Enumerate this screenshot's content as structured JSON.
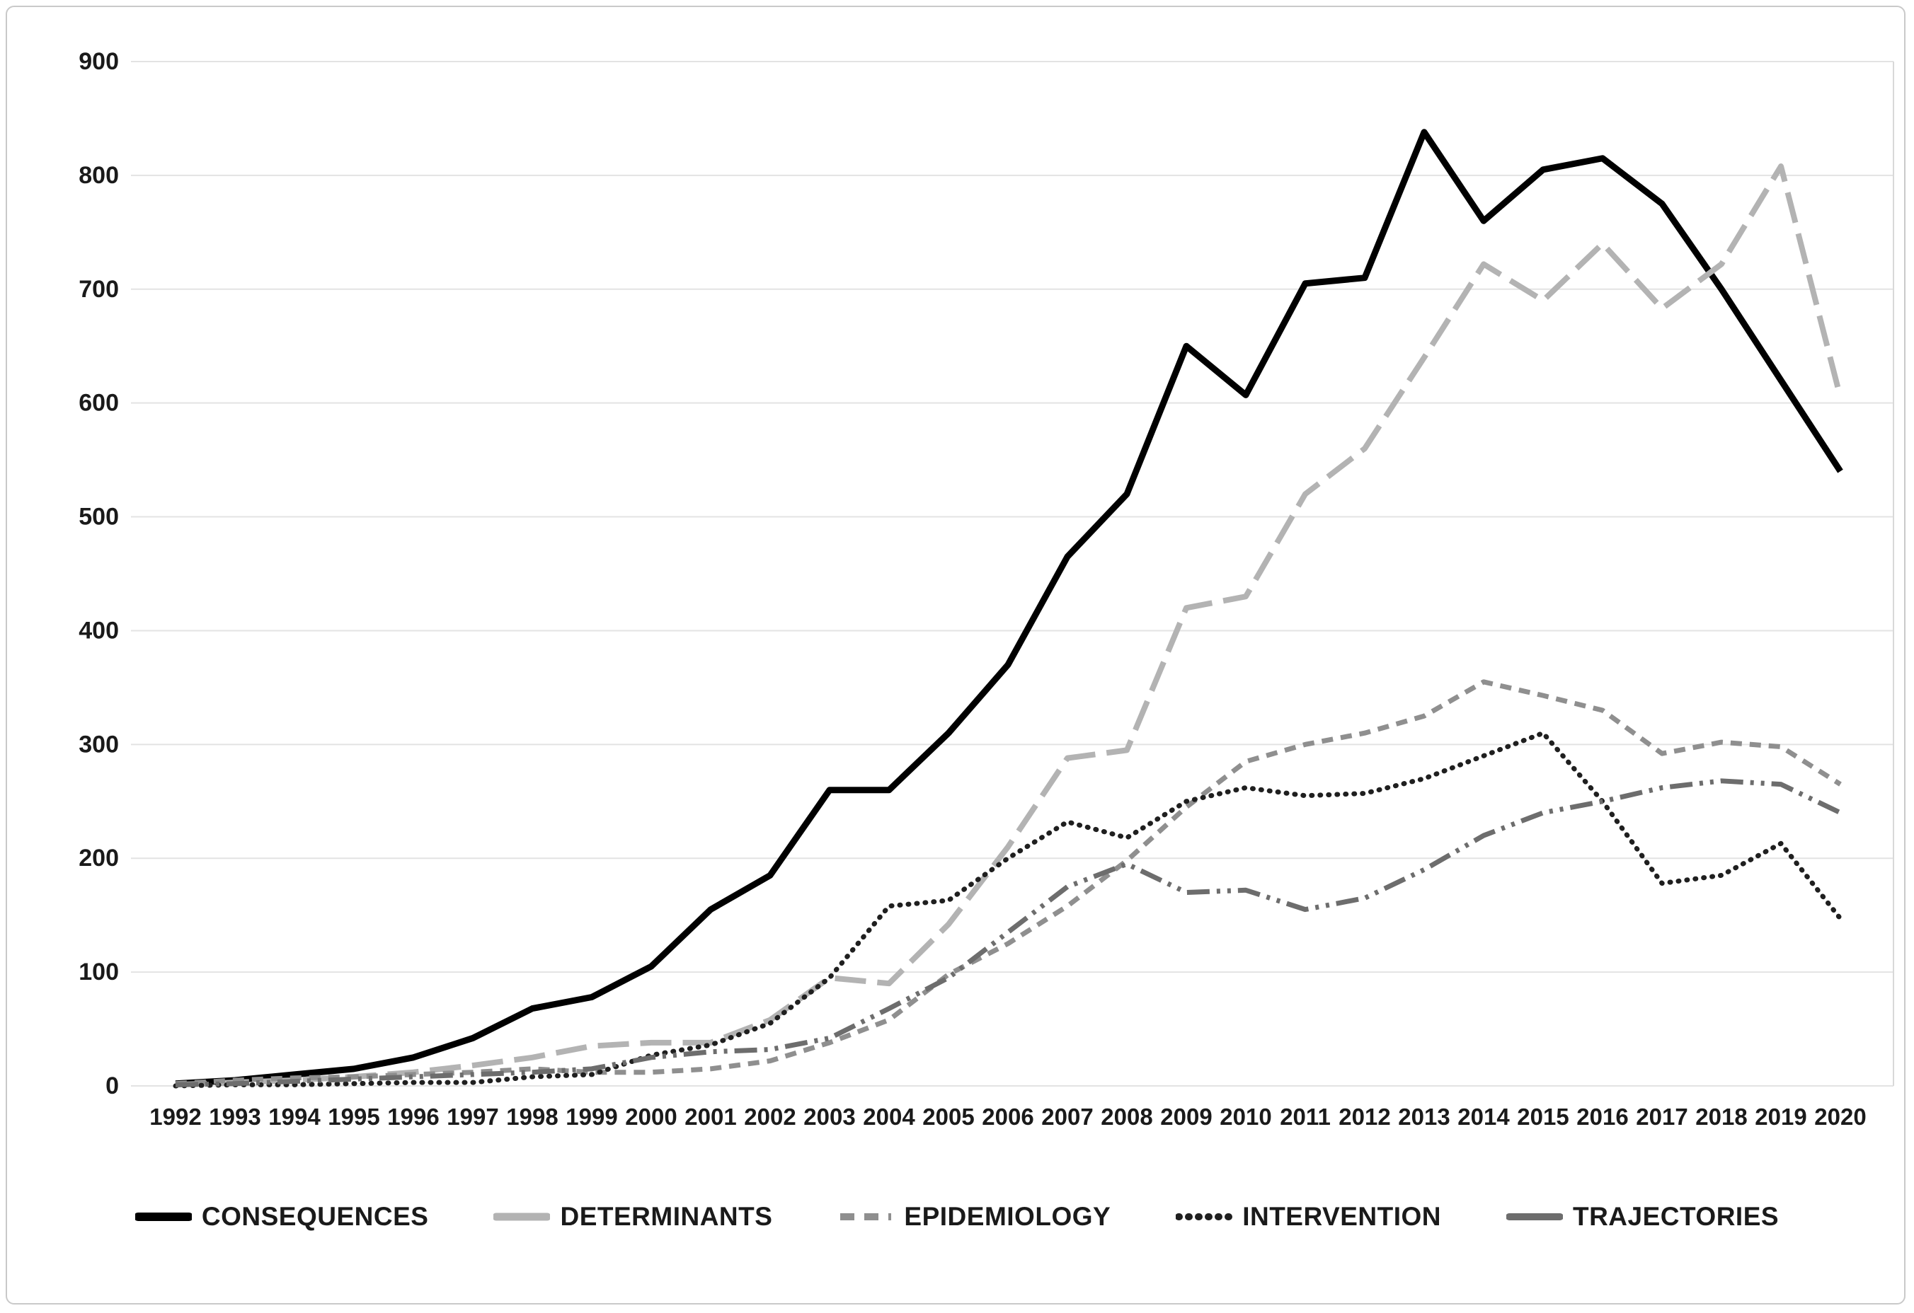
{
  "chart_data": {
    "type": "line",
    "title": "",
    "xlabel": "",
    "ylabel": "",
    "ylim": [
      0,
      900
    ],
    "y_ticks": [
      0,
      100,
      200,
      300,
      400,
      500,
      600,
      700,
      800,
      900
    ],
    "grid": "horizontal",
    "legend_position": "bottom",
    "x": [
      1992,
      1993,
      1994,
      1995,
      1996,
      1997,
      1998,
      1999,
      2000,
      2001,
      2002,
      2003,
      2004,
      2005,
      2006,
      2007,
      2008,
      2009,
      2010,
      2011,
      2012,
      2013,
      2014,
      2015,
      2016,
      2017,
      2018,
      2019,
      2020
    ],
    "series": [
      {
        "name": "CONSEQUENCES",
        "color": "#000000",
        "dash": "solid",
        "width": 9,
        "legend_dash": "solid",
        "values": [
          2,
          5,
          10,
          15,
          25,
          42,
          68,
          78,
          105,
          155,
          185,
          260,
          260,
          310,
          370,
          465,
          520,
          650,
          607,
          705,
          710,
          838,
          760,
          805,
          815,
          775,
          700,
          620,
          540
        ]
      },
      {
        "name": "DETERMINANTS",
        "color": "#b3b3b3",
        "dash": "44 16",
        "width": 8,
        "legend_dash": "solid",
        "values": [
          1,
          3,
          5,
          8,
          12,
          18,
          25,
          35,
          38,
          38,
          58,
          95,
          90,
          142,
          210,
          288,
          295,
          420,
          430,
          520,
          560,
          640,
          722,
          690,
          740,
          683,
          722,
          808,
          605
        ]
      },
      {
        "name": "EPIDEMIOLOGY",
        "color": "#8f8f8f",
        "dash": "16 11",
        "width": 7,
        "legend_dash": "20 14",
        "values": [
          2,
          5,
          7,
          8,
          10,
          12,
          15,
          12,
          12,
          15,
          22,
          38,
          58,
          98,
          125,
          158,
          198,
          245,
          285,
          300,
          310,
          325,
          355,
          343,
          330,
          292,
          302,
          298,
          265
        ]
      },
      {
        "name": "INTERVENTION",
        "color": "#1f1f1f",
        "dash": "1 11",
        "width": 7,
        "linecap": "round",
        "legend_dash": "1 13",
        "values": [
          0,
          1,
          1,
          2,
          3,
          3,
          8,
          10,
          27,
          36,
          55,
          95,
          158,
          163,
          200,
          232,
          218,
          250,
          262,
          255,
          257,
          270,
          290,
          310,
          250,
          178,
          185,
          213,
          147
        ]
      },
      {
        "name": "TRAJECTORIES",
        "color": "#6d6d6d",
        "dash": "32 10 5 10 5 10",
        "width": 7,
        "legend_dash": "solid",
        "values": [
          1,
          2,
          4,
          6,
          8,
          10,
          12,
          15,
          25,
          30,
          32,
          42,
          68,
          95,
          135,
          175,
          195,
          170,
          172,
          155,
          165,
          190,
          220,
          240,
          250,
          262,
          268,
          265,
          240
        ]
      }
    ],
    "colors": {
      "gridline": "#e3e3e3",
      "plot_border": "#d9d9d9",
      "tick_label": "#1a1a1a",
      "figure_border": "#c9c9c9",
      "background": "#ffffff"
    }
  }
}
